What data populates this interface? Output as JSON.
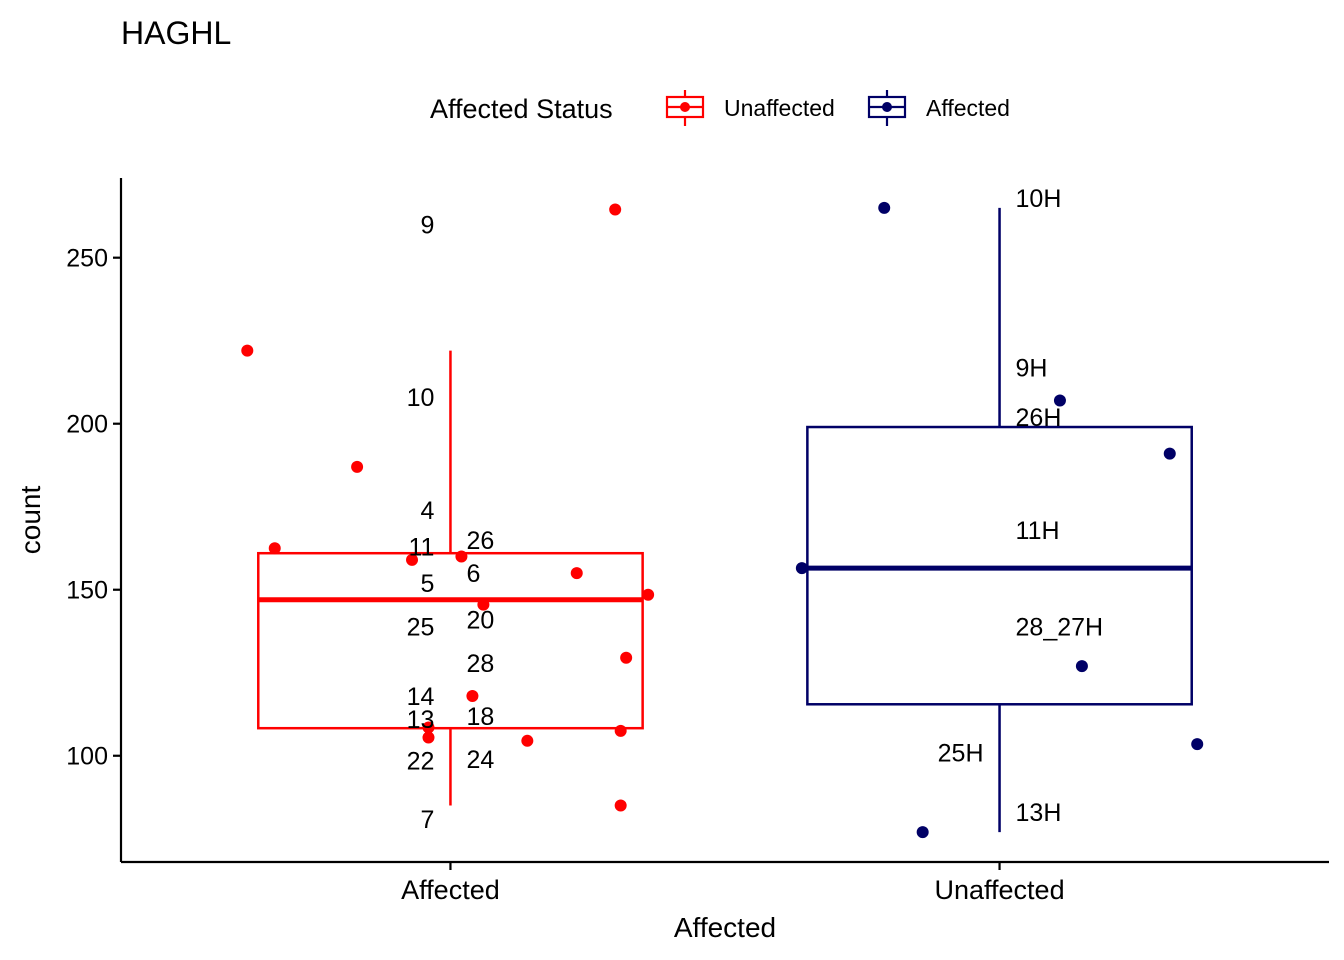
{
  "chart_data": {
    "type": "boxplot",
    "title": "HAGHL",
    "xlabel": "Affected",
    "ylabel": "count",
    "ylim": [
      68,
      274
    ],
    "yticks": [
      100,
      150,
      200,
      250
    ],
    "categories": [
      "Affected",
      "Unaffected"
    ],
    "legend": {
      "title": "Affected Status",
      "position": "top",
      "entries": [
        {
          "label": "Unaffected",
          "color": "#FF0000"
        },
        {
          "label": "Affected",
          "color": "#000066"
        }
      ]
    },
    "series": [
      {
        "name": "Unaffected",
        "category": "Affected",
        "color": "#FF0000",
        "box": {
          "q1": 108.3,
          "median": 147,
          "q3": 161,
          "whisker_low": 85,
          "whisker_high": 222
        },
        "points": [
          {
            "y": 264.5,
            "dx": 0.3
          },
          {
            "y": 222,
            "dx": -0.37
          },
          {
            "y": 187,
            "dx": -0.17
          },
          {
            "y": 162.5,
            "dx": -0.32
          },
          {
            "y": 159,
            "dx": -0.07
          },
          {
            "y": 160,
            "dx": 0.02
          },
          {
            "y": 155,
            "dx": 0.23
          },
          {
            "y": 148.5,
            "dx": 0.36
          },
          {
            "y": 145.5,
            "dx": 0.06
          },
          {
            "y": 129.5,
            "dx": 0.32
          },
          {
            "y": 118,
            "dx": 0.04
          },
          {
            "y": 108.5,
            "dx": -0.04
          },
          {
            "y": 107.5,
            "dx": 0.31
          },
          {
            "y": 105.5,
            "dx": -0.04
          },
          {
            "y": 104.5,
            "dx": 0.14
          },
          {
            "y": 85,
            "dx": 0.31
          }
        ],
        "labels": [
          {
            "text": "9",
            "y": 260,
            "side": "left"
          },
          {
            "text": "10",
            "y": 208,
            "side": "left"
          },
          {
            "text": "4",
            "y": 174,
            "side": "left"
          },
          {
            "text": "11",
            "y": 163,
            "side": "left"
          },
          {
            "text": "26",
            "y": 165,
            "side": "right"
          },
          {
            "text": "6",
            "y": 155,
            "side": "right"
          },
          {
            "text": "5",
            "y": 152,
            "side": "left"
          },
          {
            "text": "20",
            "y": 141,
            "side": "right"
          },
          {
            "text": "25",
            "y": 139,
            "side": "left"
          },
          {
            "text": "28",
            "y": 128,
            "side": "right"
          },
          {
            "text": "14",
            "y": 118,
            "side": "left"
          },
          {
            "text": "18",
            "y": 112,
            "side": "right"
          },
          {
            "text": "13",
            "y": 111,
            "side": "left"
          },
          {
            "text": "22",
            "y": 98.5,
            "side": "left"
          },
          {
            "text": "24",
            "y": 99,
            "side": "right"
          },
          {
            "text": "7",
            "y": 81,
            "side": "left"
          }
        ]
      },
      {
        "name": "Affected",
        "category": "Unaffected",
        "color": "#000066",
        "box": {
          "q1": 115.5,
          "median": 156.5,
          "q3": 199,
          "whisker_low": 77,
          "whisker_high": 265
        },
        "points": [
          {
            "y": 265,
            "dx": -0.21
          },
          {
            "y": 207,
            "dx": 0.11
          },
          {
            "y": 191,
            "dx": 0.31
          },
          {
            "y": 156.5,
            "dx": -0.36
          },
          {
            "y": 127,
            "dx": 0.15
          },
          {
            "y": 103.5,
            "dx": 0.36
          },
          {
            "y": 77,
            "dx": -0.14
          }
        ],
        "labels": [
          {
            "text": "10H",
            "y": 268,
            "side": "right"
          },
          {
            "text": "9H",
            "y": 217,
            "side": "right"
          },
          {
            "text": "26H",
            "y": 202,
            "side": "right"
          },
          {
            "text": "11H",
            "y": 168,
            "side": "right"
          },
          {
            "text": "28_27H",
            "y": 139,
            "side": "right"
          },
          {
            "text": "25H",
            "y": 101,
            "side": "left"
          },
          {
            "text": "13H",
            "y": 83,
            "side": "right"
          }
        ]
      }
    ]
  }
}
